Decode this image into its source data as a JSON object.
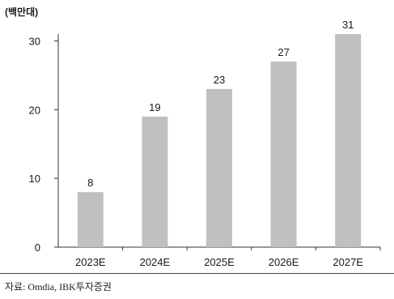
{
  "chart_data": {
    "type": "bar",
    "unit": "(백만대)",
    "categories": [
      "2023E",
      "2024E",
      "2025E",
      "2026E",
      "2027E"
    ],
    "values": [
      8,
      19,
      23,
      27,
      31
    ],
    "data_labels": [
      "8",
      "19",
      "23",
      "27",
      "31"
    ],
    "yticks": [
      0,
      10,
      20,
      30
    ],
    "ylim": [
      0,
      31
    ],
    "bar_color": "#c0c0c0",
    "grid": false,
    "legend": "none"
  },
  "source": "자료: Omdia, IBK투자증권"
}
